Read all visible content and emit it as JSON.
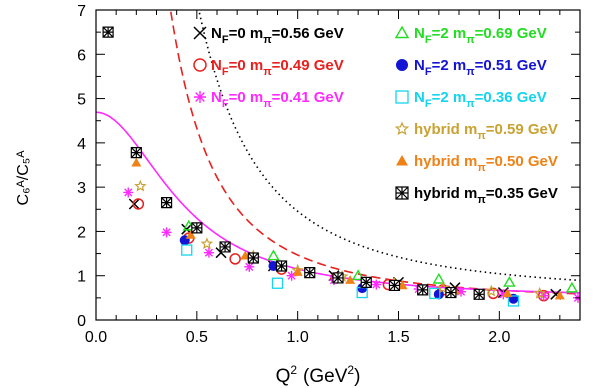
{
  "chart_data": {
    "type": "scatter",
    "title": "",
    "xlabel": "Q",
    "xlabel_sup": "2",
    "xlabel_unit_open": "(GeV",
    "xlabel_unit_sup": "2",
    "xlabel_unit_close": ")",
    "ylabel": "C₆ᴬ/C₅ᴬ",
    "xlim": [
      0,
      2.4
    ],
    "ylim": [
      0,
      7
    ],
    "x_ticks": [
      "0.0",
      "0.5",
      "1.0",
      "1.5",
      "2.0"
    ],
    "y_ticks": [
      "0",
      "1",
      "2",
      "3",
      "4",
      "5",
      "6",
      "7"
    ],
    "grid": false,
    "legend_position": "top (inside plot)",
    "series": [
      {
        "key": "s1",
        "prefix": "N",
        "sub": "F",
        "mid": "=0  m",
        "sub2": "π",
        "tail": "=0.56  GeV",
        "color": "#000000",
        "marker": "x",
        "points": [
          [
            0.19,
            2.62
          ],
          [
            0.45,
            2.05
          ],
          [
            0.62,
            1.52
          ],
          [
            0.88,
            1.22
          ],
          [
            1.18,
            1.0
          ],
          [
            1.5,
            0.85
          ],
          [
            1.78,
            0.73
          ],
          [
            2.02,
            0.62
          ],
          [
            2.28,
            0.58
          ]
        ]
      },
      {
        "key": "s2",
        "prefix": "N",
        "sub": "F",
        "mid": "=0  m",
        "sub2": "π",
        "tail": "=0.49  GeV",
        "color": "#e8201e",
        "marker": "circle-open",
        "points": [
          [
            0.21,
            2.62
          ],
          [
            0.46,
            1.85
          ],
          [
            0.69,
            1.38
          ],
          [
            0.92,
            1.15
          ],
          [
            1.19,
            0.95
          ],
          [
            1.45,
            0.8
          ],
          [
            1.72,
            0.68
          ],
          [
            1.97,
            0.6
          ],
          [
            2.22,
            0.55
          ]
        ]
      },
      {
        "key": "s3",
        "prefix": "N",
        "sub": "F",
        "mid": "=0  m",
        "sub2": "π",
        "tail": "=0.41  GeV",
        "color": "#ff2aff",
        "marker": "star",
        "points": [
          [
            0.16,
            2.88
          ],
          [
            0.35,
            1.98
          ],
          [
            0.56,
            1.52
          ],
          [
            0.76,
            1.2
          ],
          [
            0.97,
            1.0
          ],
          [
            1.18,
            0.9
          ],
          [
            1.39,
            0.8
          ],
          [
            1.6,
            0.7
          ],
          [
            1.81,
            0.64
          ],
          [
            2.02,
            0.58
          ],
          [
            2.22,
            0.55
          ],
          [
            2.39,
            0.5
          ]
        ]
      },
      {
        "key": "s4",
        "prefix": "N",
        "sub": "F",
        "mid": "=2  m",
        "sub2": "π",
        "tail": "=0.69  GeV",
        "color": "#22dd22",
        "marker": "triangle-open",
        "points": [
          [
            0.46,
            2.12
          ],
          [
            0.88,
            1.45
          ],
          [
            1.3,
            1.0
          ],
          [
            1.7,
            0.92
          ],
          [
            2.05,
            0.85
          ],
          [
            2.36,
            0.72
          ]
        ]
      },
      {
        "key": "s5",
        "prefix": "N",
        "sub": "F",
        "mid": "=2  m",
        "sub2": "π",
        "tail": "=0.51  GeV",
        "color": "#1414d4",
        "marker": "circle-filled",
        "points": [
          [
            0.44,
            1.8
          ],
          [
            0.88,
            1.22
          ],
          [
            1.32,
            0.72
          ],
          [
            1.7,
            0.58
          ],
          [
            2.07,
            0.48
          ]
        ]
      },
      {
        "key": "s6",
        "prefix": "N",
        "sub": "F",
        "mid": "=2  m",
        "sub2": "π",
        "tail": "=0.36  GeV",
        "color": "#14d4ee",
        "marker": "square-open",
        "points": [
          [
            0.45,
            1.58
          ],
          [
            0.9,
            0.83
          ],
          [
            1.32,
            0.62
          ],
          [
            1.68,
            0.6
          ],
          [
            2.07,
            0.43
          ]
        ]
      },
      {
        "key": "s7",
        "prefix": "hybrid  m",
        "sub": "π",
        "tail": "=0.59  GeV",
        "color": "#c9a233",
        "marker": "star5",
        "points": [
          [
            0.22,
            3.02
          ],
          [
            0.55,
            1.72
          ],
          [
            0.78,
            1.45
          ],
          [
            1.0,
            1.12
          ],
          [
            1.22,
            0.98
          ],
          [
            1.48,
            0.82
          ],
          [
            1.72,
            0.72
          ],
          [
            1.96,
            0.65
          ],
          [
            2.2,
            0.6
          ]
        ]
      },
      {
        "key": "s8",
        "prefix": "hybrid  m",
        "sub": "π",
        "tail": "=0.50  GeV",
        "color": "#ef8216",
        "marker": "triangle-filled",
        "points": [
          [
            0.2,
            3.55
          ],
          [
            0.47,
            1.92
          ],
          [
            0.74,
            1.45
          ],
          [
            1.0,
            1.08
          ],
          [
            1.26,
            0.9
          ],
          [
            1.52,
            0.78
          ],
          [
            1.78,
            0.66
          ],
          [
            2.04,
            0.6
          ],
          [
            2.3,
            0.55
          ]
        ]
      },
      {
        "key": "s9",
        "prefix": "hybrid  m",
        "sub": "π",
        "tail": "=0.35  GeV",
        "color": "#000000",
        "marker": "boxx",
        "points": [
          [
            0.06,
            6.5
          ],
          [
            0.2,
            3.78
          ],
          [
            0.35,
            2.65
          ],
          [
            0.5,
            2.08
          ],
          [
            0.64,
            1.65
          ],
          [
            0.78,
            1.4
          ],
          [
            0.92,
            1.22
          ],
          [
            1.06,
            1.07
          ],
          [
            1.2,
            0.95
          ],
          [
            1.34,
            0.85
          ],
          [
            1.48,
            0.78
          ],
          [
            1.62,
            0.68
          ],
          [
            1.76,
            0.62
          ],
          [
            1.9,
            0.58
          ]
        ]
      }
    ],
    "curves": [
      {
        "name": "dotted",
        "color": "#000000",
        "style": "dotted",
        "A": 2.0,
        "B": 0.05,
        "C": 0.55
      },
      {
        "name": "dashed",
        "color": "#e8201e",
        "style": "dashed",
        "A": 1.1,
        "B": 0.03,
        "C": 0.4
      },
      {
        "name": "solid",
        "color": "#ff2aff",
        "style": "solid",
        "A": 0.8,
        "B": 0.19,
        "C": 0.48
      }
    ]
  }
}
